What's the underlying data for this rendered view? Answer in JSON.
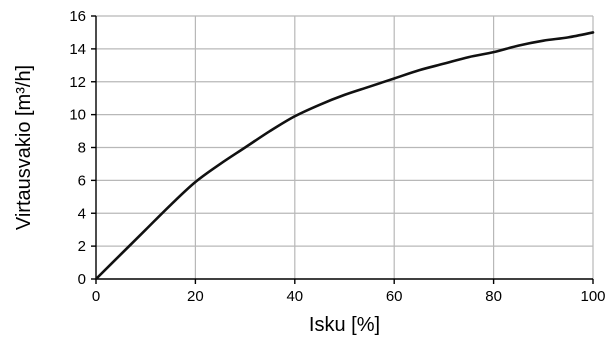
{
  "chart_data": {
    "type": "line",
    "xlabel": "Isku [%]",
    "ylabel": "Virtausvakio [m³/h]",
    "xlim": [
      0,
      100
    ],
    "ylim": [
      0,
      16
    ],
    "x_ticks": [
      0,
      20,
      40,
      60,
      80,
      100
    ],
    "y_ticks": [
      0,
      2,
      4,
      6,
      8,
      10,
      12,
      14,
      16
    ],
    "grid": true,
    "colors": {
      "line": "#111111",
      "grid": "#b8b8b8",
      "axis": "#000000"
    },
    "series": [
      {
        "x": [
          0,
          5,
          10,
          15,
          20,
          25,
          30,
          35,
          40,
          45,
          50,
          55,
          60,
          65,
          70,
          75,
          80,
          85,
          90,
          95,
          100
        ],
        "values": [
          0,
          1.5,
          3.0,
          4.5,
          5.9,
          7.0,
          8.0,
          9.0,
          9.9,
          10.6,
          11.2,
          11.7,
          12.2,
          12.7,
          13.1,
          13.5,
          13.8,
          14.2,
          14.5,
          14.7,
          15.0
        ]
      }
    ]
  }
}
